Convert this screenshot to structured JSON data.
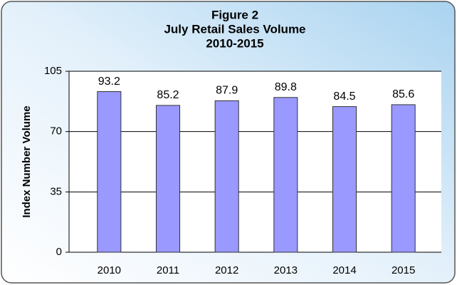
{
  "chart_data": {
    "type": "bar",
    "title": [
      "Figure 2",
      "July Retail Sales Volume",
      "2010-2015"
    ],
    "y_label": "Index Number Volume",
    "categories": [
      "2010",
      "2011",
      "2012",
      "2013",
      "2014",
      "2015"
    ],
    "values": [
      93.2,
      85.2,
      87.9,
      89.8,
      84.5,
      85.6
    ],
    "color": "#9999ff",
    "ylim": [
      0,
      105
    ],
    "yticks": [
      0,
      35,
      70,
      105
    ],
    "grid": true
  }
}
